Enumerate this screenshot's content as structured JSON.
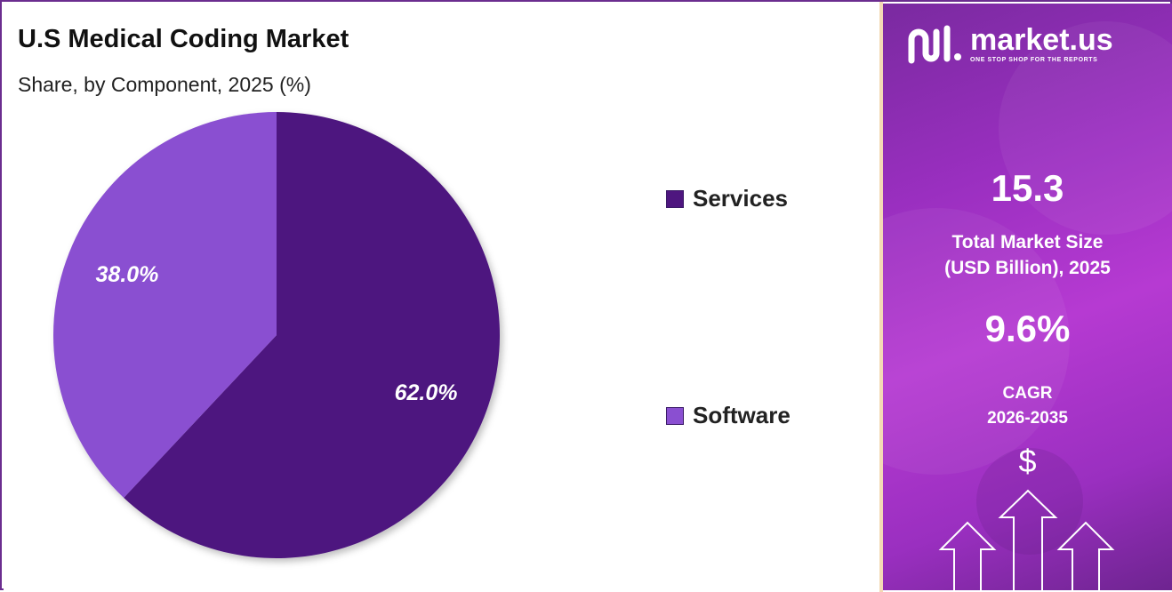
{
  "title": "U.S Medical Coding Market",
  "subtitle": "Share, by Component, 2025 (%)",
  "chart_data": {
    "type": "pie",
    "title": "U.S Medical Coding Market",
    "subtitle": "Share, by Component, 2025 (%)",
    "slices": [
      {
        "name": "Services",
        "value": 62.0,
        "label": "62.0%",
        "color": "#4e167f"
      },
      {
        "name": "Software",
        "value": 38.0,
        "label": "38.0%",
        "color": "#8a4fd1"
      }
    ],
    "legend": "right"
  },
  "legend": [
    {
      "label": "Services",
      "color": "#4e167f"
    },
    {
      "label": "Software",
      "color": "#8a4fd1"
    }
  ],
  "brand": {
    "name": "market.us",
    "tagline": "ONE STOP SHOP FOR THE REPORTS"
  },
  "stats": {
    "market_size_value": "15.3",
    "market_size_label_line1": "Total Market Size",
    "market_size_label_line2": "(USD Billion), 2025",
    "cagr_value": "9.6%",
    "cagr_label_line1": "CAGR",
    "cagr_label_line2": "2026-2035",
    "currency_symbol": "$"
  },
  "colors": {
    "accent": "#6b2d8f",
    "panel": "#9a2fc0",
    "divider": "#f3d9b5"
  },
  "icons": [
    "market-us-logo-icon",
    "dollar-icon",
    "arrow-up-icon"
  ]
}
